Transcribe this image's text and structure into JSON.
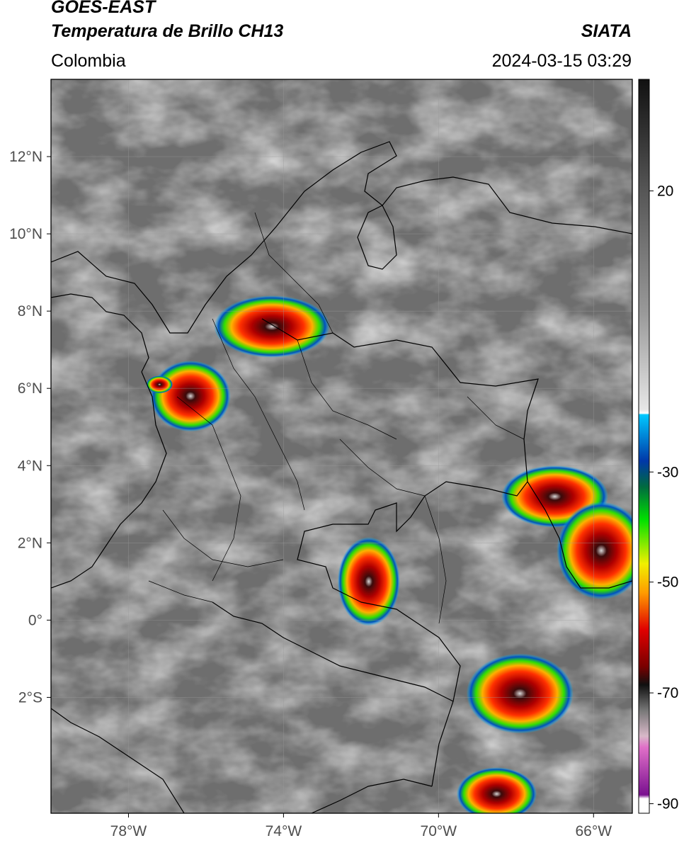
{
  "header": {
    "satellite": "GOES-EAST",
    "product": "Temperatura de Brillo CH13",
    "organization": "SIATA",
    "region": "Colombia",
    "timestamp": "2024-03-15 03:29"
  },
  "map": {
    "projection": "lat-lon",
    "lon_range": [
      -80,
      -65
    ],
    "lat_range": [
      -5,
      14
    ],
    "lat_ticks": [
      {
        "value": 12,
        "label": "12°N"
      },
      {
        "value": 10,
        "label": "10°N"
      },
      {
        "value": 8,
        "label": "8°N"
      },
      {
        "value": 6,
        "label": "6°N"
      },
      {
        "value": 4,
        "label": "4°N"
      },
      {
        "value": 2,
        "label": "2°N"
      },
      {
        "value": 0,
        "label": "0°"
      },
      {
        "value": -2,
        "label": "2°S"
      }
    ],
    "lon_ticks": [
      {
        "value": -78,
        "label": "78°W"
      },
      {
        "value": -74,
        "label": "74°W"
      },
      {
        "value": -70,
        "label": "70°W"
      },
      {
        "value": -66,
        "label": "66°W"
      }
    ],
    "storm_cells": [
      {
        "lon": -74.3,
        "lat": 7.6,
        "rx": 1.3,
        "ry": 0.7
      },
      {
        "lon": -76.4,
        "lat": 5.8,
        "rx": 0.9,
        "ry": 0.8
      },
      {
        "lon": -77.2,
        "lat": 6.1,
        "rx": 0.3,
        "ry": 0.2
      },
      {
        "lon": -71.8,
        "lat": 1.0,
        "rx": 0.7,
        "ry": 1.0
      },
      {
        "lon": -67.0,
        "lat": 3.2,
        "rx": 1.2,
        "ry": 0.7
      },
      {
        "lon": -65.8,
        "lat": 1.8,
        "rx": 1.0,
        "ry": 1.1
      },
      {
        "lon": -67.9,
        "lat": -1.9,
        "rx": 1.2,
        "ry": 0.9
      },
      {
        "lon": -68.5,
        "lat": -4.5,
        "rx": 0.9,
        "ry": 0.6
      }
    ]
  },
  "colorbar": {
    "ticks": [
      {
        "value": 20,
        "label": "20"
      },
      {
        "value": -30,
        "label": "-30"
      },
      {
        "value": -50,
        "label": "-50"
      },
      {
        "value": -70,
        "label": "-70"
      },
      {
        "value": -90,
        "label": "-90"
      }
    ]
  }
}
